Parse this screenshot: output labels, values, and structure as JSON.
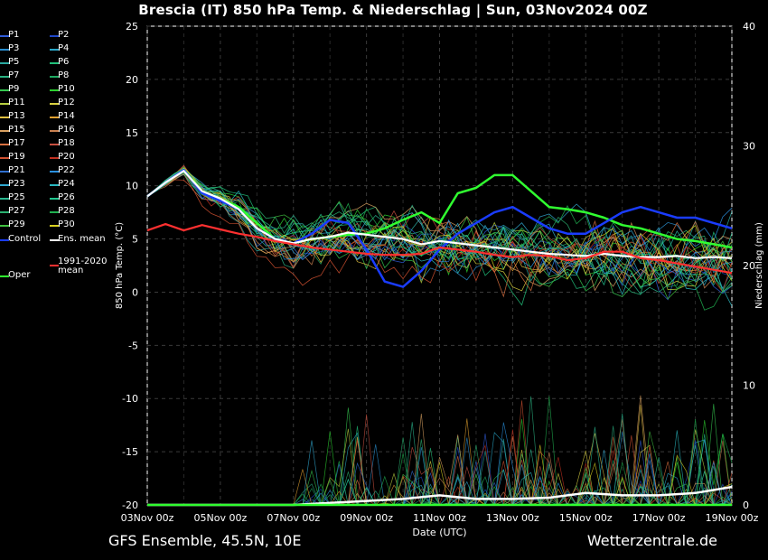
{
  "header": {
    "title": "Brescia  (IT)  850 hPa Temp. & Niederschlag | Sun, 03Nov2024 00Z"
  },
  "footer": {
    "left": "GFS Ensemble, 45.5N, 10E",
    "right": "Wetterzentrale.de"
  },
  "legend": {
    "items": [
      {
        "label": "P1",
        "color": "#2f5bd8"
      },
      {
        "label": "P2",
        "color": "#1f47c8"
      },
      {
        "label": "P3",
        "color": "#2a8fd0"
      },
      {
        "label": "P4",
        "color": "#2aa7c8"
      },
      {
        "label": "P5",
        "color": "#2aa9a0"
      },
      {
        "label": "P6",
        "color": "#21c07a"
      },
      {
        "label": "P7",
        "color": "#2ab080"
      },
      {
        "label": "P8",
        "color": "#1fa860"
      },
      {
        "label": "P9",
        "color": "#35c850"
      },
      {
        "label": "P10",
        "color": "#2cd030"
      },
      {
        "label": "P11",
        "color": "#b8d040"
      },
      {
        "label": "P12",
        "color": "#d8d040"
      },
      {
        "label": "P13",
        "color": "#e0c040"
      },
      {
        "label": "P14",
        "color": "#e0a030"
      },
      {
        "label": "P15",
        "color": "#d8a060"
      },
      {
        "label": "P16",
        "color": "#c88050"
      },
      {
        "label": "P17",
        "color": "#d87040"
      },
      {
        "label": "P18",
        "color": "#c85040"
      },
      {
        "label": "P19",
        "color": "#d05030"
      },
      {
        "label": "P20",
        "color": "#c03020"
      },
      {
        "label": "P21",
        "color": "#3070d0"
      },
      {
        "label": "P22",
        "color": "#2a90e0"
      },
      {
        "label": "P23",
        "color": "#30a8d0"
      },
      {
        "label": "P24",
        "color": "#2ab8c0"
      },
      {
        "label": "P25",
        "color": "#2ab890"
      },
      {
        "label": "P26",
        "color": "#22c890"
      },
      {
        "label": "P27",
        "color": "#2ab070"
      },
      {
        "label": "P28",
        "color": "#20b050"
      },
      {
        "label": "P29",
        "color": "#40c040"
      },
      {
        "label": "P30",
        "color": "#d8d020"
      },
      {
        "label": "Control",
        "color": "#1a3cff"
      },
      {
        "label": "Ens. mean",
        "color": "#ffffff"
      },
      {
        "label": "Oper",
        "color": "#30ff30"
      },
      {
        "label": "1991-2020 mean",
        "color": "#ff3030"
      }
    ]
  },
  "chart_data": {
    "type": "line",
    "title": "Brescia  (IT)  850 hPa Temp. & Niederschlag | Sun, 03Nov2024 00Z",
    "xlabel": "Date (UTC)",
    "ylabel": "850 hPa Temp. (°C)",
    "y2label": "Niederschlag (mm)",
    "ylim": [
      -20,
      25
    ],
    "y2lim": [
      0,
      40
    ],
    "yticks": [
      -20,
      -15,
      -10,
      -5,
      0,
      5,
      10,
      15,
      20,
      25
    ],
    "y2ticks": [
      0,
      10,
      20,
      30,
      40
    ],
    "x_tick_labels": [
      "03Nov 00z",
      "05Nov 00z",
      "07Nov 00z",
      "09Nov 00z",
      "11Nov 00z",
      "13Nov 00z",
      "15Nov 00z",
      "17Nov 00z",
      "19Nov 00z"
    ],
    "x_days_span": 16,
    "grid": true,
    "series": [
      {
        "name": "Oper",
        "color": "#30ff30",
        "width": 2.5,
        "values": [
          [
            0,
            9
          ],
          [
            0.5,
            10.3
          ],
          [
            1,
            11.5
          ],
          [
            1.5,
            9.5
          ],
          [
            2,
            8.8
          ],
          [
            2.5,
            8.0
          ],
          [
            3,
            6.5
          ],
          [
            3.5,
            5.0
          ],
          [
            4,
            4.6
          ],
          [
            4.5,
            5.0
          ],
          [
            5,
            5.2
          ],
          [
            5.5,
            5.4
          ],
          [
            6,
            5.5
          ],
          [
            6.5,
            6.0
          ],
          [
            7,
            6.8
          ],
          [
            7.5,
            7.5
          ],
          [
            8,
            6.5
          ],
          [
            8.5,
            9.3
          ],
          [
            9,
            9.8
          ],
          [
            9.5,
            11.0
          ],
          [
            10,
            11.0
          ],
          [
            10.5,
            9.5
          ],
          [
            11,
            8.0
          ],
          [
            11.5,
            7.8
          ],
          [
            12,
            7.5
          ],
          [
            12.5,
            7.0
          ],
          [
            13,
            6.3
          ],
          [
            13.5,
            6.0
          ],
          [
            14,
            5.5
          ],
          [
            14.5,
            5.0
          ],
          [
            15,
            4.8
          ],
          [
            15.5,
            4.5
          ],
          [
            16,
            4.2
          ]
        ]
      },
      {
        "name": "Control",
        "color": "#1a3cff",
        "width": 2.5,
        "values": [
          [
            0,
            9
          ],
          [
            0.5,
            10.3
          ],
          [
            1,
            11.5
          ],
          [
            1.5,
            9.3
          ],
          [
            2,
            8.6
          ],
          [
            2.5,
            7.8
          ],
          [
            3,
            6.0
          ],
          [
            3.5,
            5.0
          ],
          [
            4,
            4.6
          ],
          [
            4.5,
            5.5
          ],
          [
            5,
            6.8
          ],
          [
            5.5,
            6.5
          ],
          [
            6,
            4.0
          ],
          [
            6.5,
            1.0
          ],
          [
            7,
            0.5
          ],
          [
            7.5,
            2.0
          ],
          [
            8,
            4.0
          ],
          [
            8.5,
            5.5
          ],
          [
            9,
            6.5
          ],
          [
            9.5,
            7.5
          ],
          [
            10,
            8.0
          ],
          [
            10.5,
            7.0
          ],
          [
            11,
            6.0
          ],
          [
            11.5,
            5.5
          ],
          [
            12,
            5.5
          ],
          [
            12.5,
            6.5
          ],
          [
            13,
            7.5
          ],
          [
            13.5,
            8.0
          ],
          [
            14,
            7.5
          ],
          [
            14.5,
            7.0
          ],
          [
            15,
            7.0
          ],
          [
            15.5,
            6.5
          ],
          [
            16,
            6.0
          ]
        ]
      },
      {
        "name": "Ens. mean",
        "color": "#ffffff",
        "width": 2.2,
        "values": [
          [
            0,
            9
          ],
          [
            0.5,
            10.3
          ],
          [
            1,
            11.4
          ],
          [
            1.5,
            9.5
          ],
          [
            2,
            8.8
          ],
          [
            2.5,
            7.8
          ],
          [
            3,
            6.0
          ],
          [
            3.5,
            5.0
          ],
          [
            4,
            4.6
          ],
          [
            4.5,
            5.0
          ],
          [
            5,
            5.2
          ],
          [
            5.5,
            5.6
          ],
          [
            6,
            5.4
          ],
          [
            6.5,
            5.2
          ],
          [
            7,
            5.0
          ],
          [
            7.5,
            4.5
          ],
          [
            8,
            4.8
          ],
          [
            8.5,
            4.6
          ],
          [
            9,
            4.4
          ],
          [
            9.5,
            4.2
          ],
          [
            10,
            4.0
          ],
          [
            10.5,
            3.8
          ],
          [
            11,
            3.6
          ],
          [
            11.5,
            3.5
          ],
          [
            12,
            3.4
          ],
          [
            12.5,
            3.6
          ],
          [
            13,
            3.4
          ],
          [
            13.5,
            3.3
          ],
          [
            14,
            3.3
          ],
          [
            14.5,
            3.4
          ],
          [
            15,
            3.2
          ],
          [
            15.5,
            3.3
          ],
          [
            16,
            3.2
          ]
        ]
      },
      {
        "name": "1991-2020 mean",
        "color": "#ff3030",
        "width": 2.2,
        "values": [
          [
            0,
            5.8
          ],
          [
            0.5,
            6.4
          ],
          [
            1,
            5.8
          ],
          [
            1.5,
            6.3
          ],
          [
            2,
            5.9
          ],
          [
            2.5,
            5.5
          ],
          [
            3,
            5.2
          ],
          [
            3.5,
            4.8
          ],
          [
            4,
            4.5
          ],
          [
            4.5,
            4.2
          ],
          [
            5,
            4.0
          ],
          [
            5.5,
            3.8
          ],
          [
            6,
            3.6
          ],
          [
            6.5,
            3.5
          ],
          [
            7,
            3.5
          ],
          [
            7.5,
            3.6
          ],
          [
            8,
            4.2
          ],
          [
            8.5,
            4.0
          ],
          [
            9,
            3.8
          ],
          [
            9.5,
            3.5
          ],
          [
            10,
            3.3
          ],
          [
            10.5,
            3.5
          ],
          [
            11,
            3.4
          ],
          [
            11.5,
            3.0
          ],
          [
            12,
            3.2
          ],
          [
            12.5,
            3.8
          ],
          [
            13,
            3.8
          ],
          [
            13.5,
            3.2
          ],
          [
            14,
            3.0
          ],
          [
            14.5,
            2.7
          ],
          [
            15,
            2.4
          ],
          [
            15.5,
            2.1
          ],
          [
            16,
            1.8
          ]
        ]
      }
    ],
    "precip_series": [
      {
        "name": "Ens. mean",
        "color": "#ffffff",
        "values": [
          [
            0,
            0
          ],
          [
            4,
            0
          ],
          [
            7,
            0.5
          ],
          [
            8,
            0.8
          ],
          [
            9,
            0.5
          ],
          [
            10,
            0.5
          ],
          [
            11,
            0.6
          ],
          [
            12,
            1.0
          ],
          [
            13,
            0.8
          ],
          [
            14,
            0.8
          ],
          [
            15,
            1.0
          ],
          [
            16,
            1.5
          ]
        ]
      },
      {
        "name": "Oper",
        "color": "#30ff30",
        "values": [
          [
            0,
            0
          ],
          [
            16,
            0
          ]
        ]
      }
    ]
  }
}
